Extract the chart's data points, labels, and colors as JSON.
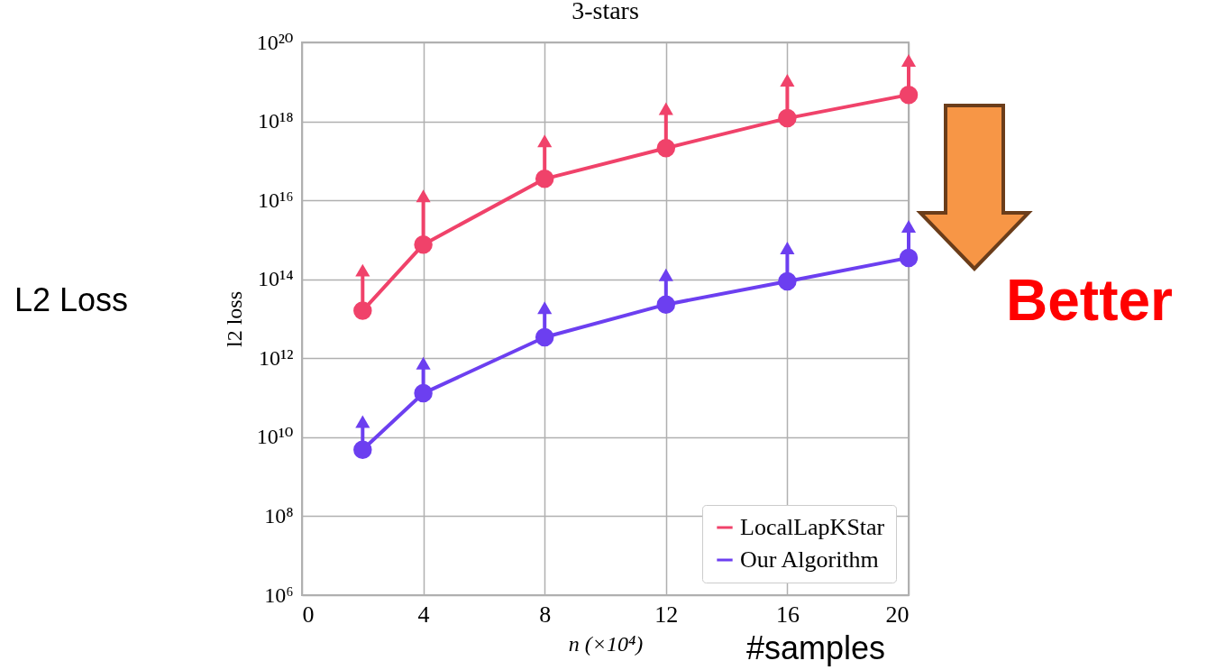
{
  "chart_data": {
    "type": "line",
    "title": "3-stars",
    "xlabel": "n (×10⁴)",
    "ylabel": "l2 loss",
    "x": [
      2,
      4,
      8,
      12,
      16,
      20
    ],
    "series": [
      {
        "name": "LocalLapKStar",
        "color": "#f0426a",
        "values": [
          16000000000000.0,
          760000000000000.0,
          3.5e+16,
          2.1e+17,
          1.2e+18,
          4.7e+18
        ],
        "errors": [
          [
            16000000000000.0,
            170000000000000.0
          ],
          [
            760000000000000.0,
            1.3e+16
          ],
          [
            3.5e+16,
            3.2e+17
          ],
          [
            2.1e+17,
            2.1e+18
          ],
          [
            1.2e+18,
            1.1e+19
          ],
          [
            4.7e+18,
            3.5e+19
          ]
        ]
      },
      {
        "name": "Our Algorithm",
        "color": "#6c3ff0",
        "values": [
          4800000000.0,
          130000000000.0,
          3400000000000.0,
          23000000000000.0,
          89000000000000.0,
          350000000000000.0
        ],
        "errors": [
          [
            4800000000.0,
            25000000000.0
          ],
          [
            130000000000.0,
            750000000000.0
          ],
          [
            3400000000000.0,
            19000000000000.0
          ],
          [
            23000000000000.0,
            130000000000000.0
          ],
          [
            89000000000000.0,
            620000000000000.0
          ],
          [
            350000000000000.0,
            2200000000000000.0
          ]
        ]
      }
    ],
    "xlim": [
      0,
      20
    ],
    "xticks": [
      0,
      4,
      8,
      12,
      16,
      20
    ],
    "ylim": [
      1000000.0,
      1e+20
    ],
    "yticks": [
      {
        "value": 1000000.0,
        "label": "10⁶"
      },
      {
        "value": 100000000.0,
        "label": "10⁸"
      },
      {
        "value": 10000000000.0,
        "label": "10¹⁰"
      },
      {
        "value": 1000000000000.0,
        "label": "10¹²"
      },
      {
        "value": 100000000000000.0,
        "label": "10¹⁴"
      },
      {
        "value": 1e+16,
        "label": "10¹⁶"
      },
      {
        "value": 1e+18,
        "label": "10¹⁸"
      },
      {
        "value": 1e+20,
        "label": "10²⁰"
      }
    ],
    "log": "y",
    "grid": true,
    "legend": "bottom right",
    "marker": "circle",
    "line_style": "solid",
    "annotations": [
      "L2 Loss",
      "Better",
      "#samples"
    ]
  }
}
